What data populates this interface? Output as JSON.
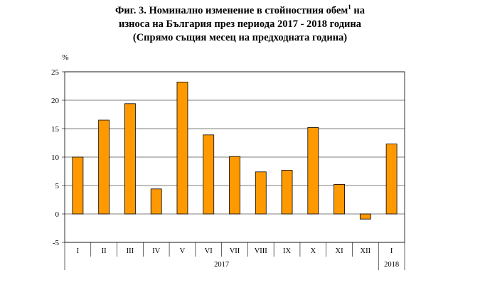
{
  "title": {
    "line1_main": "Фиг. 3. Номинално изменение в стойностния обем",
    "line1_sup": "1",
    "line1_end": " на",
    "line2": "износа на България през периода 2017 - 2018 година",
    "line3": "(Спрямо същия месец на предходната година)"
  },
  "chart_data": {
    "type": "bar",
    "ylabel": "%",
    "ylim": [
      -5,
      25
    ],
    "yticks": [
      "-5",
      "0",
      "5",
      "10",
      "15",
      "20",
      "25"
    ],
    "grid": true,
    "bar_color": "#ff9900",
    "categories": [
      "I",
      "II",
      "III",
      "IV",
      "V",
      "VI",
      "VII",
      "VIII",
      "IX",
      "X",
      "XI",
      "XII",
      "I"
    ],
    "values": [
      10.0,
      16.5,
      19.4,
      4.4,
      23.2,
      13.9,
      10.1,
      7.4,
      7.7,
      15.2,
      5.2,
      -0.9,
      12.3
    ],
    "year_groups": [
      {
        "label": "2017",
        "count": 12
      },
      {
        "label": "2018",
        "count": 1
      }
    ]
  }
}
